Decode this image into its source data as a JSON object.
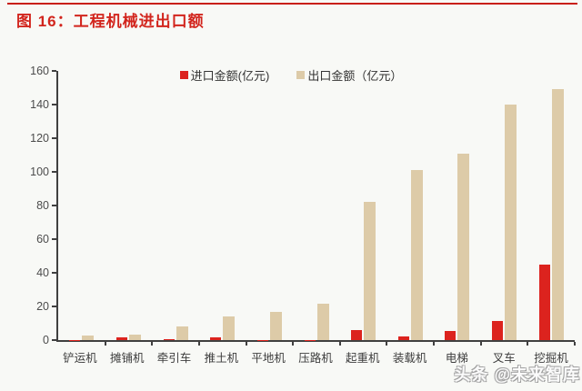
{
  "header": {
    "title": "图 16：工程机械进出口额"
  },
  "watermark": "头条 @未来智库",
  "colors": {
    "brand_red": "#d2251d",
    "rule_red": "#c92018",
    "import_bar": "#dc231e",
    "export_bar": "#ddcba8",
    "axis": "#404040"
  },
  "chart_data": {
    "type": "bar",
    "title": "工程机械进出口额",
    "categories": [
      "铲运机",
      "摊铺机",
      "牵引车",
      "推土机",
      "平地机",
      "压路机",
      "起重机",
      "装载机",
      "电梯",
      "叉车",
      "挖掘机"
    ],
    "series": [
      {
        "name": "进口金额(亿元)",
        "color": "#dc231e",
        "values": [
          0.2,
          1.8,
          0.8,
          1.8,
          0.1,
          0.2,
          6,
          2,
          5.5,
          11.5,
          45
        ]
      },
      {
        "name": "出口金额（亿元）",
        "color": "#ddcba8",
        "values": [
          2.5,
          3.5,
          8,
          14,
          16.5,
          21.5,
          82,
          101,
          111,
          140,
          149
        ]
      }
    ],
    "xlabel": "",
    "ylabel": "",
    "ylim": [
      0,
      160
    ],
    "yticks": [
      0,
      20,
      40,
      60,
      80,
      100,
      120,
      140,
      160
    ],
    "grid": false,
    "legend_position": "top-center"
  }
}
